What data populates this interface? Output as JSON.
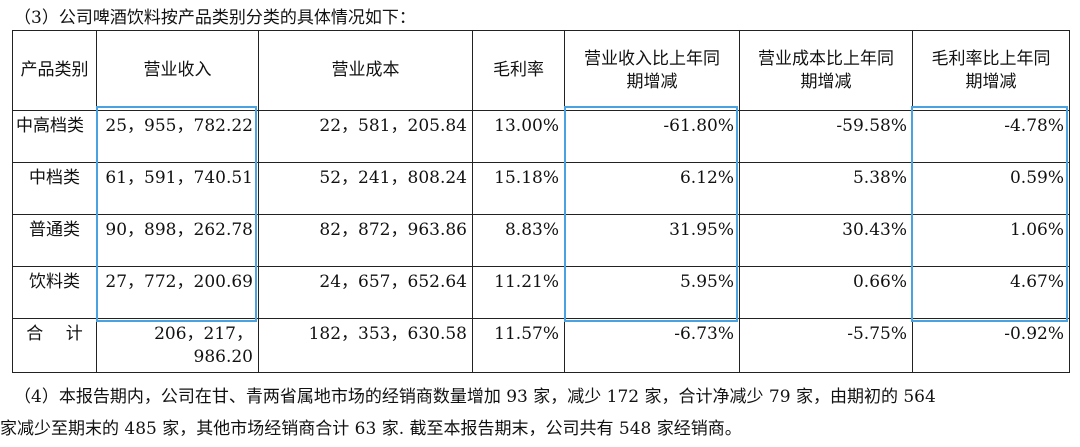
{
  "intro": "（3）公司啤酒饮料按产品类别分类的具体情况如下：",
  "table": {
    "headers": [
      "产品类别",
      "营业收入",
      "营业成本",
      "毛利率",
      "营业收入比上年同期增减",
      "营业成本比上年同期增减",
      "毛利率比上年同期增减"
    ],
    "header_lines": [
      [
        "产品类别"
      ],
      [
        "营业收入"
      ],
      [
        "营业成本"
      ],
      [
        "毛利率"
      ],
      [
        "营业收入比上年同",
        "期增减"
      ],
      [
        "营业成本比上年同",
        "期增减"
      ],
      [
        "毛利率比上年同",
        "期增减"
      ]
    ],
    "rows": [
      [
        "中高档类",
        "25，955，782.22",
        "22，581，205.84",
        "13.00%",
        "-61.80%",
        "-59.58%",
        "-4.78%"
      ],
      [
        "中档类",
        "61，591，740.51",
        "52，241，808.24",
        "15.18%",
        "6.12%",
        "5.38%",
        "0.59%"
      ],
      [
        "普通类",
        "90，898，262.78",
        "82，872，963.86",
        "8.83%",
        "31.95%",
        "30.43%",
        "1.06%"
      ],
      [
        "饮料类",
        "27，772，200.69",
        "24，657，652.64",
        "11.21%",
        "5.95%",
        "0.66%",
        "4.67%"
      ],
      [
        "合　 计",
        "206，217，986.20",
        "182，353，630.58",
        "11.57%",
        "-6.73%",
        "-5.75%",
        "-0.92%"
      ]
    ]
  },
  "highlight_color": "#4aa3e0",
  "para1": "（4）本报告期内，公司在甘、青两省属地市场的经销商数量增加 93 家，减少 172 家，合计净减少 79 家，由期初的 564",
  "para2": "家减少至期末的 485 家，其他市场经销商合计 63 家. 截至本报告期末，公司共有 548 家经销商。"
}
